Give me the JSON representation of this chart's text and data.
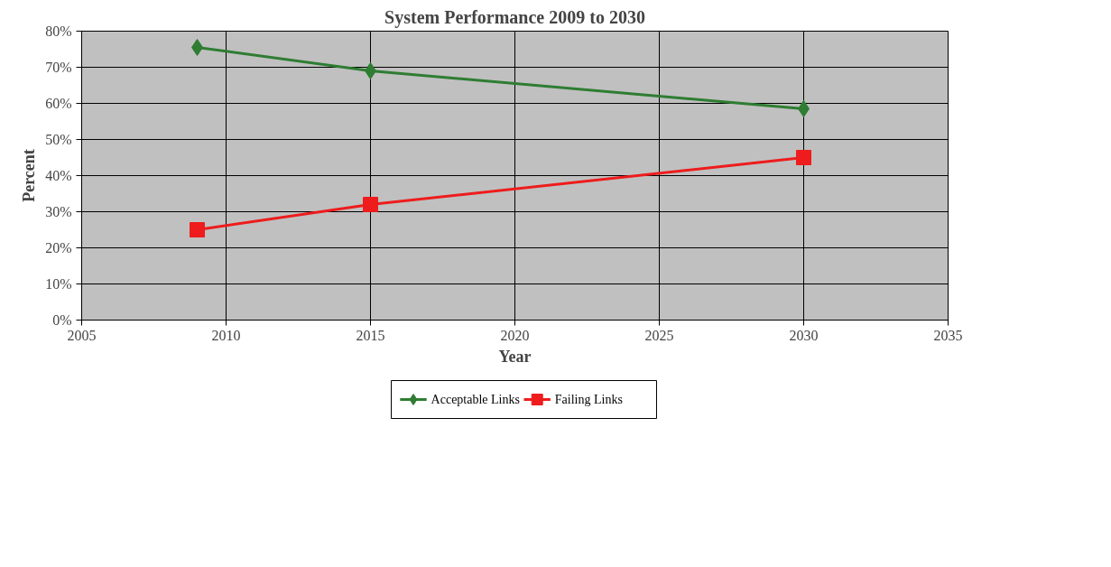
{
  "chart_data": {
    "type": "line",
    "title": "System Performance 2009 to 2030",
    "xlabel": "Year",
    "ylabel": "Percent",
    "x": [
      2009,
      2015,
      2030
    ],
    "series": [
      {
        "name": "Acceptable Links",
        "color": "#2e7d32",
        "values": [
          75.5,
          69,
          58.5
        ],
        "marker": "diamond"
      },
      {
        "name": "Failing Links",
        "color": "#ee1c1c",
        "values": [
          25,
          32,
          45
        ],
        "marker": "square"
      }
    ],
    "xlim": [
      2005,
      2035
    ],
    "xticks": [
      2005,
      2010,
      2015,
      2020,
      2025,
      2030,
      2035
    ],
    "ylim": [
      0,
      80
    ],
    "yticks": [
      {
        "value": 0,
        "label": "0%"
      },
      {
        "value": 10,
        "label": "10%"
      },
      {
        "value": 20,
        "label": "20%"
      },
      {
        "value": 30,
        "label": "30%"
      },
      {
        "value": 40,
        "label": "40%"
      },
      {
        "value": 50,
        "label": "50%"
      },
      {
        "value": 60,
        "label": "60%"
      },
      {
        "value": 70,
        "label": "70%"
      },
      {
        "value": 80,
        "label": "80%"
      }
    ],
    "grid": true,
    "legend": "bottom",
    "line_style": "solid"
  }
}
